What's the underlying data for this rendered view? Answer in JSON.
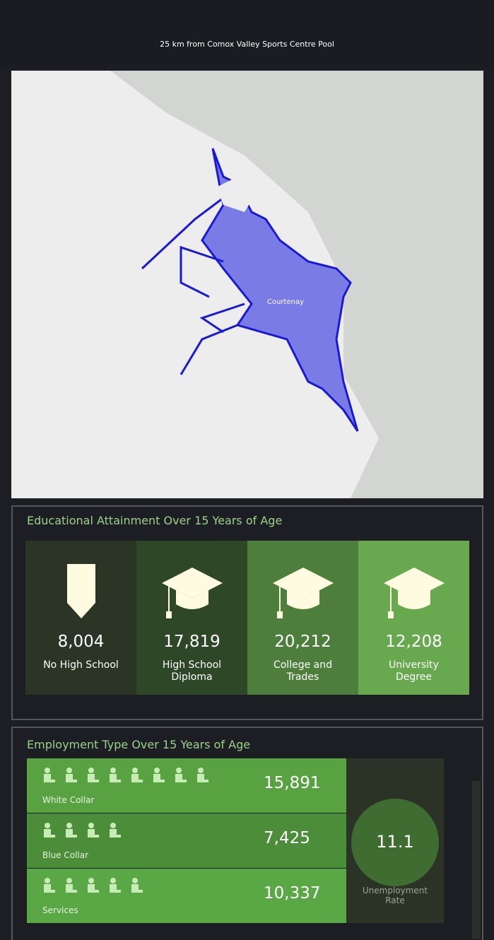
{
  "header": {
    "title": "25 km from Comox Valley Sports Centre Pool"
  },
  "map": {
    "label": "Courtenay"
  },
  "education": {
    "title": "Educational Attainment Over 15 Years of Age",
    "items": [
      {
        "value": "8,004",
        "label": "No High School"
      },
      {
        "value": "17,819",
        "label": "High School Diploma"
      },
      {
        "value": "20,212",
        "label": "College and Trades"
      },
      {
        "value": "12,208",
        "label": "University Degree"
      }
    ]
  },
  "employment": {
    "title": "Employment Type Over 15 Years of Age",
    "rows": [
      {
        "label": "White Collar",
        "value": "15,891"
      },
      {
        "label": "Blue Collar",
        "value": "7,425"
      },
      {
        "label": "Services",
        "value": "10,337"
      }
    ],
    "rate": {
      "value": "11.1",
      "label": "Unemployment Rate"
    }
  }
}
